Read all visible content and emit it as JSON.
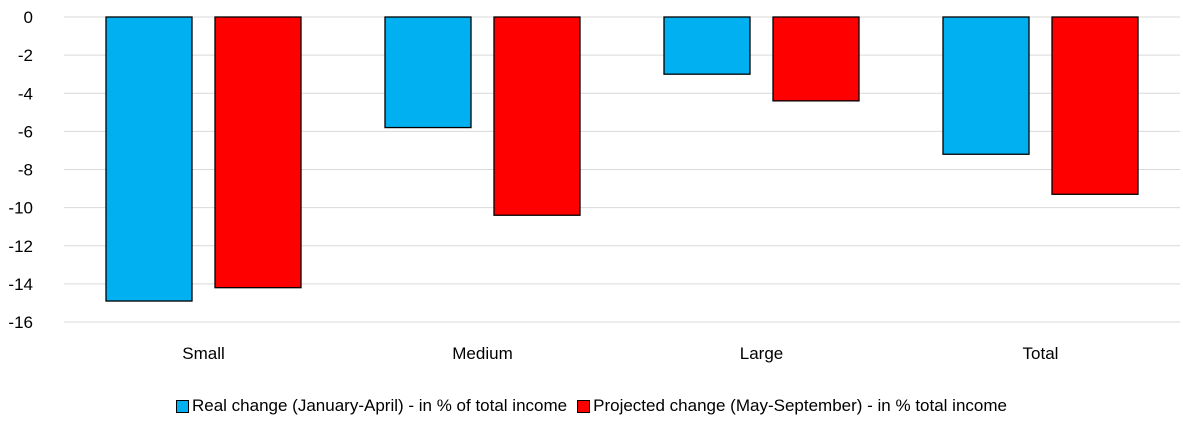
{
  "chart_data": {
    "type": "bar",
    "categories": [
      "Small",
      "Medium",
      "Large",
      "Total"
    ],
    "series": [
      {
        "name": "Real change (January-April) - in % of total income",
        "values": [
          -14.9,
          -5.8,
          -3.0,
          -7.2
        ],
        "color": "#00B0F0"
      },
      {
        "name": "Projected change (May-September) - in % total income",
        "values": [
          -14.2,
          -10.4,
          -4.4,
          -9.3
        ],
        "color": "#FF0000"
      }
    ],
    "yticks": [
      0,
      -2,
      -4,
      -6,
      -8,
      -10,
      -12,
      -14,
      -16
    ],
    "ylim": [
      -16,
      0
    ],
    "grid": true,
    "legend_position": "bottom"
  }
}
